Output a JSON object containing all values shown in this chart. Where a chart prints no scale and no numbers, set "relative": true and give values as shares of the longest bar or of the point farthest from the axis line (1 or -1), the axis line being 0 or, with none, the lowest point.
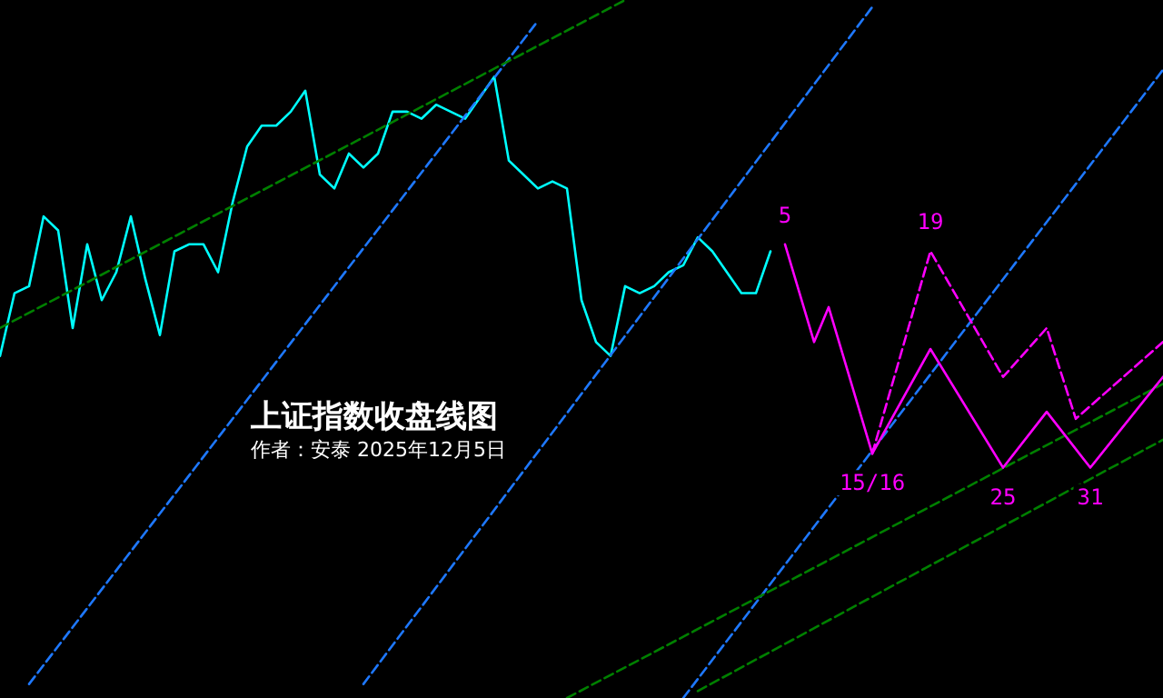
{
  "chart_data": {
    "type": "line",
    "title": "上证指数收盘线图",
    "subtitle": "作者：安泰 2025年12月5日",
    "relative": true,
    "grid": false,
    "tick_labels": false,
    "marker": "none",
    "annotations": [
      {
        "text": "5",
        "y": 0.65
      },
      {
        "text": "19",
        "y": 0.64
      },
      {
        "text": "15/16",
        "y": 0.35
      },
      {
        "text": "25",
        "y": 0.33
      },
      {
        "text": "31",
        "y": 0.33
      }
    ],
    "categories": [
      null,
      null,
      null,
      null,
      null,
      null,
      null,
      null,
      null,
      null,
      null,
      null,
      null,
      null,
      null,
      null,
      null,
      null,
      null,
      null,
      null,
      null,
      null,
      null,
      null,
      null,
      null,
      null,
      null,
      null,
      null,
      null,
      null,
      null,
      null,
      null,
      null,
      null,
      null,
      null,
      null,
      null,
      null,
      null,
      null,
      null,
      null,
      null,
      null,
      null,
      null,
      null,
      null,
      null,
      null,
      null,
      null,
      null,
      null,
      null,
      null,
      null,
      null,
      null,
      null,
      null,
      null,
      null,
      null,
      null,
      null,
      null,
      null,
      null,
      null,
      null,
      null,
      null,
      null,
      null,
      null
    ],
    "series": [
      {
        "color": "#00ffff",
        "line_style": "solid",
        "values": [
          0.49,
          0.58,
          0.59,
          0.69,
          0.67,
          0.53,
          0.65,
          0.57,
          0.61,
          0.69,
          0.6,
          0.52,
          0.64,
          0.65,
          0.65,
          0.61,
          0.71,
          0.79,
          0.82,
          0.82,
          0.84,
          0.87,
          0.75,
          0.73,
          0.78,
          0.76,
          0.78,
          0.84,
          0.84,
          0.83,
          0.85,
          0.84,
          0.83,
          0.86,
          0.89,
          0.77,
          0.75,
          0.73,
          0.74,
          0.73,
          0.57,
          0.51,
          0.49,
          0.59,
          0.58,
          0.59,
          0.61,
          0.62,
          0.66,
          0.64,
          0.61,
          0.58,
          0.58,
          0.64,
          null,
          null,
          null,
          null,
          null,
          null,
          null,
          null,
          null,
          null,
          null,
          null,
          null,
          null,
          null,
          null,
          null,
          null,
          null,
          null,
          null,
          null,
          null,
          null,
          null,
          null,
          null
        ]
      },
      {
        "color": "#1e78ff",
        "line_style": "dashed",
        "values": [
          null,
          null,
          0.02,
          null,
          null,
          null,
          null,
          null,
          null,
          null,
          null,
          null,
          null,
          null,
          null,
          null,
          null,
          null,
          null,
          null,
          null,
          null,
          null,
          null,
          null,
          null,
          null,
          null,
          null,
          null,
          null,
          null,
          null,
          null,
          null,
          null,
          null,
          0.97,
          null,
          null,
          null,
          null,
          null,
          null,
          null,
          null,
          null,
          null,
          null,
          null,
          null,
          null,
          null,
          null,
          null,
          null,
          null,
          null,
          null,
          null,
          null,
          null,
          null,
          null,
          null,
          null,
          null,
          null,
          null,
          null,
          null,
          null,
          null,
          null,
          null,
          null,
          null,
          null,
          null,
          null,
          null
        ]
      },
      {
        "color": "#1e78ff",
        "line_style": "dashed",
        "values": [
          null,
          null,
          null,
          null,
          null,
          null,
          null,
          null,
          null,
          null,
          null,
          null,
          null,
          null,
          null,
          null,
          null,
          null,
          null,
          null,
          null,
          null,
          null,
          null,
          null,
          0.02,
          null,
          null,
          null,
          null,
          null,
          null,
          null,
          null,
          null,
          null,
          null,
          null,
          null,
          null,
          null,
          null,
          null,
          null,
          null,
          null,
          null,
          null,
          null,
          null,
          null,
          null,
          null,
          null,
          null,
          null,
          null,
          null,
          null,
          null,
          0.99,
          null,
          null,
          null,
          null,
          null,
          null,
          null,
          null,
          null,
          null,
          null,
          null,
          null,
          null,
          null,
          null,
          null,
          null,
          null,
          null
        ]
      },
      {
        "color": "#1e78ff",
        "line_style": "dashed",
        "values": [
          null,
          null,
          null,
          null,
          null,
          null,
          null,
          null,
          null,
          null,
          null,
          null,
          null,
          null,
          null,
          null,
          null,
          null,
          null,
          null,
          null,
          null,
          null,
          null,
          null,
          null,
          null,
          null,
          null,
          null,
          null,
          null,
          null,
          null,
          null,
          null,
          null,
          null,
          null,
          null,
          null,
          null,
          null,
          null,
          null,
          null,
          null,
          0.0,
          null,
          null,
          null,
          null,
          null,
          null,
          null,
          null,
          null,
          null,
          null,
          null,
          null,
          null,
          null,
          null,
          null,
          null,
          null,
          null,
          null,
          null,
          null,
          null,
          null,
          null,
          null,
          null,
          null,
          null,
          null,
          null,
          0.9
        ]
      },
      {
        "color": "#008000",
        "line_style": "dashed",
        "values": [
          0.53,
          null,
          null,
          null,
          null,
          null,
          null,
          null,
          null,
          null,
          null,
          null,
          null,
          null,
          null,
          null,
          null,
          null,
          null,
          null,
          null,
          null,
          null,
          null,
          null,
          null,
          null,
          null,
          null,
          null,
          null,
          null,
          null,
          null,
          null,
          null,
          null,
          null,
          null,
          null,
          null,
          null,
          null,
          1.0,
          null,
          null,
          null,
          null,
          null,
          null,
          null,
          null,
          null,
          null,
          null,
          null,
          null,
          null,
          null,
          null,
          null,
          null,
          null,
          null,
          null,
          null,
          null,
          null,
          null,
          null,
          null,
          null,
          null,
          null,
          null,
          null,
          null,
          null,
          null,
          null,
          null
        ]
      },
      {
        "color": "#008000",
        "line_style": "dashed",
        "values": [
          null,
          null,
          null,
          null,
          null,
          null,
          null,
          null,
          null,
          null,
          null,
          null,
          null,
          null,
          null,
          null,
          null,
          null,
          null,
          null,
          null,
          null,
          null,
          null,
          null,
          null,
          null,
          null,
          null,
          null,
          null,
          null,
          null,
          null,
          null,
          null,
          null,
          null,
          null,
          0.0,
          null,
          null,
          null,
          null,
          null,
          null,
          null,
          null,
          null,
          null,
          null,
          null,
          null,
          null,
          null,
          null,
          null,
          null,
          null,
          null,
          null,
          null,
          null,
          null,
          null,
          null,
          null,
          null,
          null,
          null,
          null,
          null,
          null,
          null,
          null,
          null,
          null,
          null,
          null,
          null,
          0.45
        ]
      },
      {
        "color": "#008000",
        "line_style": "dashed",
        "values": [
          null,
          null,
          null,
          null,
          null,
          null,
          null,
          null,
          null,
          null,
          null,
          null,
          null,
          null,
          null,
          null,
          null,
          null,
          null,
          null,
          null,
          null,
          null,
          null,
          null,
          null,
          null,
          null,
          null,
          null,
          null,
          null,
          null,
          null,
          null,
          null,
          null,
          null,
          null,
          null,
          null,
          null,
          null,
          null,
          null,
          null,
          null,
          null,
          0.01,
          null,
          null,
          null,
          null,
          null,
          null,
          null,
          null,
          null,
          null,
          null,
          null,
          null,
          null,
          null,
          null,
          null,
          null,
          null,
          null,
          null,
          null,
          null,
          null,
          null,
          null,
          null,
          null,
          null,
          null,
          null,
          0.37
        ]
      },
      {
        "color": "#ff00ff",
        "line_style": "solid",
        "values": [
          null,
          null,
          null,
          null,
          null,
          null,
          null,
          null,
          null,
          null,
          null,
          null,
          null,
          null,
          null,
          null,
          null,
          null,
          null,
          null,
          null,
          null,
          null,
          null,
          null,
          null,
          null,
          null,
          null,
          null,
          null,
          null,
          null,
          null,
          null,
          null,
          null,
          null,
          null,
          null,
          null,
          null,
          null,
          null,
          null,
          null,
          null,
          null,
          null,
          null,
          null,
          null,
          null,
          null,
          0.65,
          null,
          0.51,
          0.56,
          null,
          null,
          0.35,
          null,
          null,
          null,
          0.5,
          null,
          null,
          null,
          null,
          0.33,
          null,
          null,
          0.41,
          null,
          null,
          0.33,
          null,
          null,
          null,
          null,
          0.46
        ]
      },
      {
        "color": "#ff00ff",
        "line_style": "dashed",
        "values": [
          null,
          null,
          null,
          null,
          null,
          null,
          null,
          null,
          null,
          null,
          null,
          null,
          null,
          null,
          null,
          null,
          null,
          null,
          null,
          null,
          null,
          null,
          null,
          null,
          null,
          null,
          null,
          null,
          null,
          null,
          null,
          null,
          null,
          null,
          null,
          null,
          null,
          null,
          null,
          null,
          null,
          null,
          null,
          null,
          null,
          null,
          null,
          null,
          null,
          null,
          null,
          null,
          null,
          null,
          null,
          null,
          null,
          null,
          null,
          null,
          0.35,
          null,
          null,
          null,
          0.64,
          null,
          null,
          null,
          null,
          0.46,
          null,
          null,
          0.53,
          null,
          0.4,
          null,
          null,
          null,
          null,
          null,
          0.51
        ]
      }
    ]
  }
}
